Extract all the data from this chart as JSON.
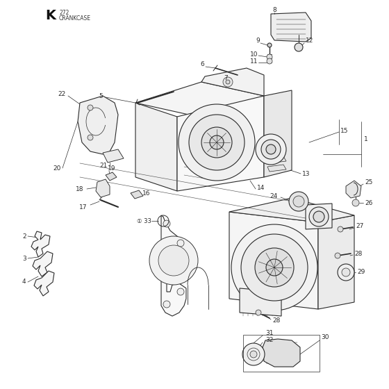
{
  "title_letter": "K",
  "title_num": "272",
  "title_text": "CRANKCASE",
  "bg_color": "#ffffff",
  "lc": "#2a2a2a",
  "fig_width": 5.6,
  "fig_height": 5.6,
  "dpi": 100
}
